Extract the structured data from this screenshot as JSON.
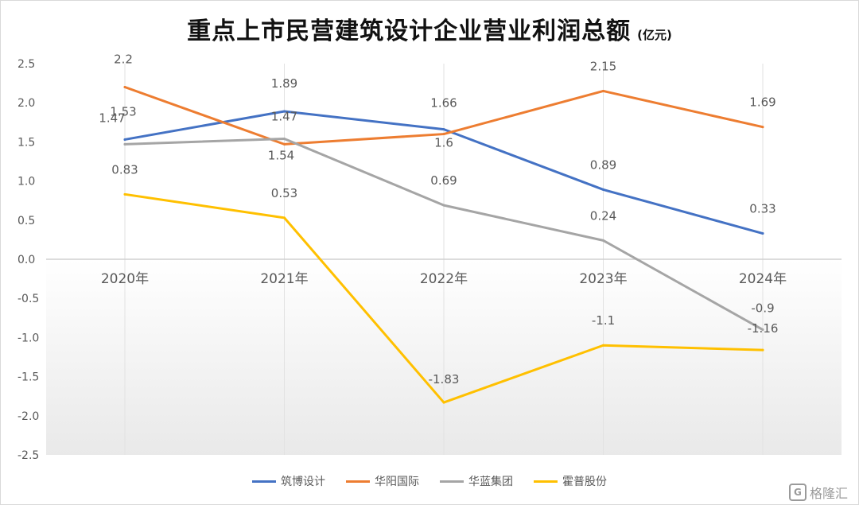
{
  "title": "重点上市民营建筑设计企业营业利润总额",
  "subtitle": "(亿元)",
  "watermark": "格隆汇",
  "watermark_logo": "G",
  "chart_data": {
    "type": "line",
    "categories": [
      "2020年",
      "2021年",
      "2022年",
      "2023年",
      "2024年"
    ],
    "ylim": [
      -2.5,
      2.5
    ],
    "yticks": [
      "2.5",
      "2.0",
      "1.5",
      "1.0",
      "0.5",
      "0.0",
      "-0.5",
      "-1.0",
      "-1.5",
      "-2.0",
      "-2.5"
    ],
    "grid": "vertical",
    "legend": "bottom",
    "series": [
      {
        "name": "筑博设计",
        "color": "#4472C4",
        "values": [
          1.53,
          1.89,
          1.66,
          0.89,
          0.33
        ],
        "labels": [
          "1.53",
          "1.89",
          "1.66",
          "0.89",
          "0.33"
        ]
      },
      {
        "name": "华阳国际",
        "color": "#ED7D31",
        "values": [
          2.2,
          1.47,
          1.6,
          2.15,
          1.69
        ],
        "labels": [
          "2.2",
          "1.47",
          "1.6",
          "2.15",
          "1.69"
        ]
      },
      {
        "name": "华蓝集团",
        "color": "#A5A5A5",
        "values": [
          1.47,
          1.54,
          0.69,
          0.24,
          -0.9
        ],
        "labels": [
          "1.47",
          "1.54",
          "0.69",
          "0.24",
          "-0.9"
        ]
      },
      {
        "name": "霍普股份",
        "color": "#FFC000",
        "values": [
          0.83,
          0.53,
          -1.83,
          -1.1,
          -1.16
        ],
        "labels": [
          "0.83",
          "0.53",
          "-1.83",
          "-1.1",
          "-1.16"
        ]
      }
    ]
  }
}
